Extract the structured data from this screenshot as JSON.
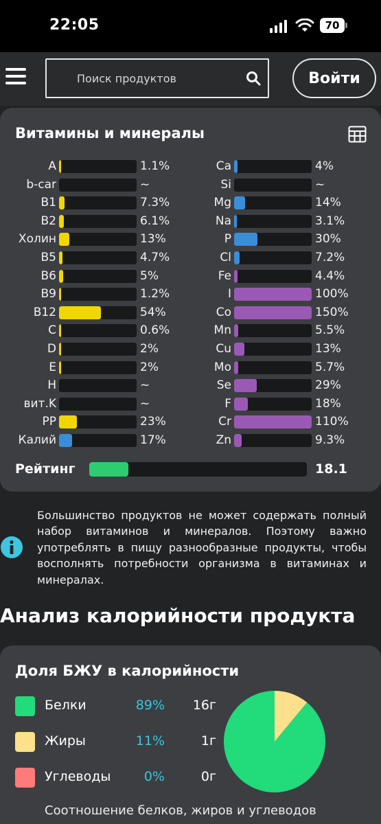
{
  "status_bar": {
    "time": "22:05",
    "battery": "70"
  },
  "header": {
    "search_placeholder": "Поиск продуктов",
    "login_label": "Войти"
  },
  "vitamins": {
    "title": "Витамины и минералы",
    "left": [
      {
        "label": "A",
        "value": "1.1%",
        "percent": 1.1,
        "color": "#f2d600"
      },
      {
        "label": "b-car",
        "value": "~",
        "percent": 0,
        "color": "#f2d600"
      },
      {
        "label": "B1",
        "value": "7.3%",
        "percent": 7.3,
        "color": "#f2d600"
      },
      {
        "label": "B2",
        "value": "6.1%",
        "percent": 6.1,
        "color": "#f2d600"
      },
      {
        "label": "Холин",
        "value": "13%",
        "percent": 13,
        "color": "#f2d600"
      },
      {
        "label": "B5",
        "value": "4.7%",
        "percent": 4.7,
        "color": "#f2d600"
      },
      {
        "label": "B6",
        "value": "5%",
        "percent": 5,
        "color": "#f2d600"
      },
      {
        "label": "B9",
        "value": "1.2%",
        "percent": 1.2,
        "color": "#f2d600"
      },
      {
        "label": "B12",
        "value": "54%",
        "percent": 54,
        "color": "#f2d600"
      },
      {
        "label": "C",
        "value": "0.6%",
        "percent": 0.6,
        "color": "#f2d600"
      },
      {
        "label": "D",
        "value": "2%",
        "percent": 2,
        "color": "#f2d600"
      },
      {
        "label": "E",
        "value": "2%",
        "percent": 2,
        "color": "#f2d600"
      },
      {
        "label": "H",
        "value": "~",
        "percent": 0,
        "color": "#f2d600"
      },
      {
        "label": "вит.K",
        "value": "~",
        "percent": 0,
        "color": "#f2d600"
      },
      {
        "label": "PP",
        "value": "23%",
        "percent": 23,
        "color": "#f2d600"
      },
      {
        "label": "Калий",
        "value": "17%",
        "percent": 17,
        "color": "#3a8ed8"
      }
    ],
    "right": [
      {
        "label": "Ca",
        "value": "4%",
        "percent": 4,
        "color": "#3a8ed8"
      },
      {
        "label": "Si",
        "value": "~",
        "percent": 0,
        "color": "#3a8ed8"
      },
      {
        "label": "Mg",
        "value": "14%",
        "percent": 14,
        "color": "#3a8ed8"
      },
      {
        "label": "Na",
        "value": "3.1%",
        "percent": 3.1,
        "color": "#3a8ed8"
      },
      {
        "label": "P",
        "value": "30%",
        "percent": 30,
        "color": "#3a8ed8"
      },
      {
        "label": "Cl",
        "value": "7.2%",
        "percent": 7.2,
        "color": "#3a8ed8"
      },
      {
        "label": "Fe",
        "value": "4.4%",
        "percent": 4.4,
        "color": "#9b59b6"
      },
      {
        "label": "I",
        "value": "100%",
        "percent": 100,
        "color": "#9b59b6"
      },
      {
        "label": "Co",
        "value": "150%",
        "percent": 150,
        "color": "#9b59b6"
      },
      {
        "label": "Mn",
        "value": "5.5%",
        "percent": 5.5,
        "color": "#9b59b6"
      },
      {
        "label": "Cu",
        "value": "13%",
        "percent": 13,
        "color": "#9b59b6"
      },
      {
        "label": "Mo",
        "value": "5.7%",
        "percent": 5.7,
        "color": "#9b59b6"
      },
      {
        "label": "Se",
        "value": "29%",
        "percent": 29,
        "color": "#9b59b6"
      },
      {
        "label": "F",
        "value": "18%",
        "percent": 18,
        "color": "#9b59b6"
      },
      {
        "label": "Cr",
        "value": "110%",
        "percent": 110,
        "color": "#9b59b6"
      },
      {
        "label": "Zn",
        "value": "9.3%",
        "percent": 9.3,
        "color": "#9b59b6"
      }
    ],
    "rating": {
      "label": "Рейтинг",
      "value": "18.1",
      "percent": 18.1,
      "color": "#2ecc71"
    }
  },
  "info": {
    "text": "Большинство продуктов не может содержать полный набор витаминов и минералов. Поэтому важно употреблять в пищу разнообразные продукты, чтобы восполнять потребности организма в витаминах и минералах."
  },
  "analysis": {
    "title": "Анализ калорийности продукта",
    "card_title": "Доля БЖУ в калорийности",
    "items": [
      {
        "name": "Белки",
        "pct": "89%",
        "grams": "16г",
        "share": 89,
        "color": "#22db7a"
      },
      {
        "name": "Жиры",
        "pct": "11%",
        "grams": "1г",
        "share": 11,
        "color": "#fde08b"
      },
      {
        "name": "Углеводы",
        "pct": "0%",
        "grams": "0г",
        "share": 0,
        "color": "#ff7b7b"
      }
    ],
    "caption": "Соотношение белков, жиров и углеводов"
  }
}
